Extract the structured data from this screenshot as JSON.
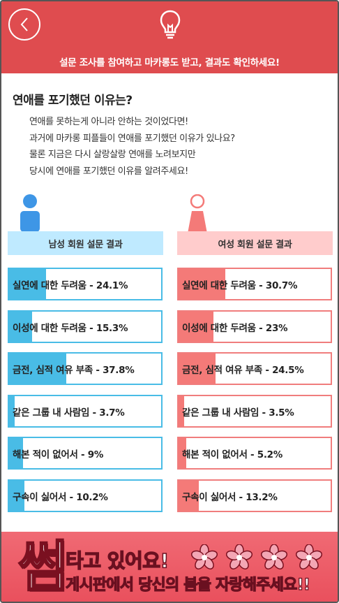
{
  "header": {
    "title": "설문 조사를 참여하고 마카롱도 받고, 결과도 확인하세요!",
    "back_icon": "chevron-left-icon",
    "lightbulb_icon": "lightbulb-icon",
    "color": "#df4c4f"
  },
  "question": {
    "title": "연애를 포기했던 이유는?",
    "lines": [
      "연애를 못하는게 아니라 안하는 것이었다면!",
      "과거에 마카롱 피플들이 연애를 포기했던 이유가 있나요?",
      "물론 지금은 다시 살랑살랑 연애를 노려보지만",
      "당시에 연애를 포기했던 이유를 알려주세요!"
    ]
  },
  "male": {
    "heading": "남성 회원 설문 결과",
    "icon": "male-person-icon",
    "color": "#49bce6",
    "results": [
      {
        "label": "실연에 대한 두려움 - 24.1%",
        "percent": 24.1
      },
      {
        "label": "이성에 대한 두려움 - 15.3%",
        "percent": 15.3
      },
      {
        "label": "금전, 심적 여유 부족 - 37.8%",
        "percent": 37.8
      },
      {
        "label": "같은 그룹 내 사람임 - 3.7%",
        "percent": 3.7
      },
      {
        "label": "해본 적이 없어서 - 9%",
        "percent": 9
      },
      {
        "label": "구속이 싫어서 - 10.2%",
        "percent": 10.2
      }
    ]
  },
  "female": {
    "heading": "여성 회원 설문 결과",
    "icon": "female-person-icon",
    "color": "#f47a78",
    "results": [
      {
        "label": "실연에 대한 두려움 - 30.7%",
        "percent": 30.7
      },
      {
        "label": "이성에 대한 두려움 - 23%",
        "percent": 23
      },
      {
        "label": "금전, 심적 여유 부족 - 24.5%",
        "percent": 24.5
      },
      {
        "label": "같은 그룹 내 사람임 - 3.5%",
        "percent": 3.5
      },
      {
        "label": "해본 적이 없어서 - 5.2%",
        "percent": 5.2
      },
      {
        "label": "구속이 싫어서 - 13.2%",
        "percent": 13.2
      }
    ]
  },
  "banner": {
    "big_char": "썸",
    "line1": "타고 있어요!",
    "line2_pre": "게시판에서 ",
    "line2_highlight": "당신의 봄",
    "line2_post": "을 자랑해주세요!!",
    "flower_icon": "flower-icon"
  }
}
